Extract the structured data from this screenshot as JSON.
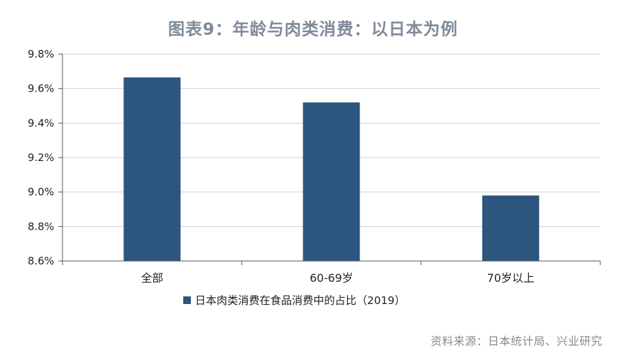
{
  "chart_data": {
    "type": "bar",
    "title": "图表9：年龄与肉类消费：以日本为例",
    "categories": [
      "全部",
      "60-69岁",
      "70岁以上"
    ],
    "series": [
      {
        "name": "日本肉类消费在食品消费中的占比（2019）",
        "values": [
          9.665,
          9.52,
          8.98
        ],
        "color": "#2c5580"
      }
    ],
    "yticks": [
      "8.6%",
      "8.8%",
      "9.0%",
      "9.2%",
      "9.4%",
      "9.6%",
      "9.8%"
    ],
    "ylim": [
      8.6,
      9.8
    ],
    "grid": true,
    "legend_position": "bottom-left"
  },
  "source": "资料来源：日本统计局、兴业研究"
}
